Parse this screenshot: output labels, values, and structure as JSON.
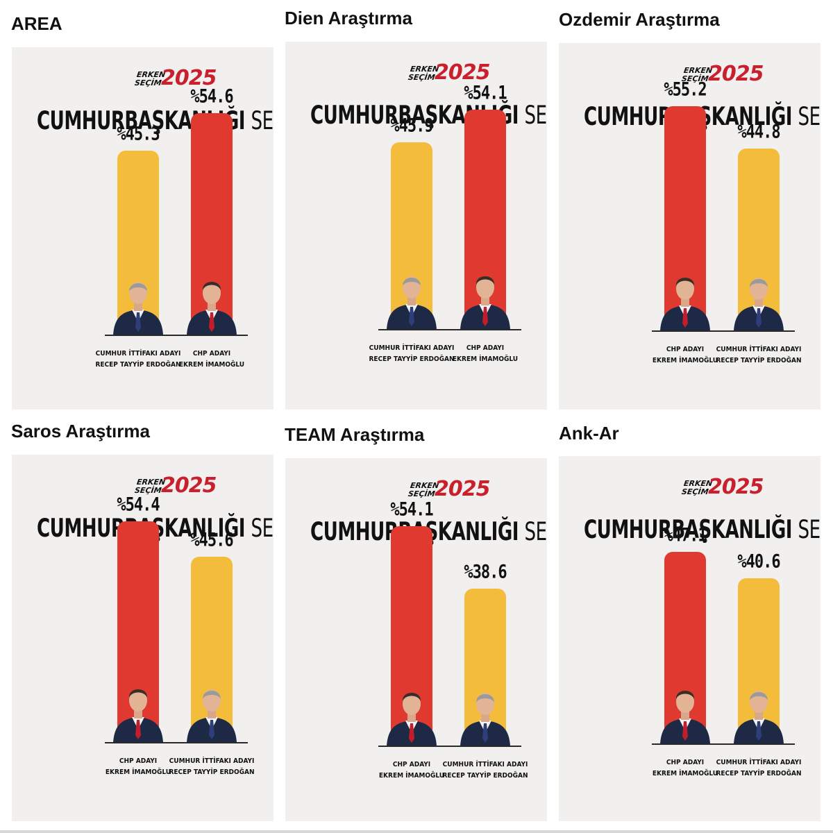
{
  "brand": {
    "top": "ERKEN",
    "bottom": "SEÇİM",
    "year": "2025"
  },
  "headline": {
    "bold": "CUMHURBAŞKANLIĞI",
    "rest": "SEÇİM AN"
  },
  "colors": {
    "red": "#e03a30",
    "yellow": "#f3bd3b",
    "suit": "#1e2a45",
    "tie_red": "#c21d2a",
    "tie_blue": "#2d3e7a"
  },
  "candidates": {
    "imamoglu": {
      "line1": "CHP ADAYI",
      "line2": "EKREM İMAMOĞLU",
      "color": "#e03a30",
      "tie": "#c21d2a",
      "icon": "person-imamoglu-icon"
    },
    "erdogan": {
      "line1": "CUMHUR İTTİFAKI ADAYI",
      "line2": "RECEP TAYYİP ERDOĞAN",
      "color": "#f3bd3b",
      "tie": "#2d3e7a",
      "icon": "person-erdogan-icon"
    }
  },
  "chart_data": [
    {
      "type": "bar",
      "title": "AREA",
      "categories": [
        "Recep Tayyip Erdoğan",
        "Ekrem İmamoğlu"
      ],
      "candidate_order": [
        "erdogan",
        "imamoglu"
      ],
      "values": [
        45.3,
        54.6
      ],
      "labels": [
        "%45.3",
        "%54.6"
      ],
      "ylim": [
        0,
        60
      ],
      "grid": false
    },
    {
      "type": "bar",
      "title": "Dien Araştırma",
      "categories": [
        "Recep Tayyip Erdoğan",
        "Ekrem İmamoğlu"
      ],
      "candidate_order": [
        "erdogan",
        "imamoglu"
      ],
      "values": [
        45.9,
        54.1
      ],
      "labels": [
        "%45.9",
        "%54.1"
      ],
      "ylim": [
        0,
        60
      ],
      "grid": false
    },
    {
      "type": "bar",
      "title": "Ozdemir Araştırma",
      "categories": [
        "Ekrem İmamoğlu",
        "Recep Tayyip Erdoğan"
      ],
      "candidate_order": [
        "imamoglu",
        "erdogan"
      ],
      "values": [
        55.2,
        44.8
      ],
      "labels": [
        "%55.2",
        "%44.8"
      ],
      "ylim": [
        0,
        60
      ],
      "grid": false
    },
    {
      "type": "bar",
      "title": "Saros Araştırma",
      "categories": [
        "Ekrem İmamoğlu",
        "Recep Tayyip Erdoğan"
      ],
      "candidate_order": [
        "imamoglu",
        "erdogan"
      ],
      "values": [
        54.4,
        45.6
      ],
      "labels": [
        "%54.4",
        "%45.6"
      ],
      "ylim": [
        0,
        60
      ],
      "grid": false
    },
    {
      "type": "bar",
      "title": "TEAM Araştırma",
      "categories": [
        "Ekrem İmamoğlu",
        "Recep Tayyip Erdoğan"
      ],
      "candidate_order": [
        "imamoglu",
        "erdogan"
      ],
      "values": [
        54.1,
        38.6
      ],
      "labels": [
        "%54.1",
        "%38.6"
      ],
      "ylim": [
        0,
        60
      ],
      "grid": false
    },
    {
      "type": "bar",
      "title": "Ank-Ar",
      "categories": [
        "Ekrem İmamoğlu",
        "Recep Tayyip Erdoğan"
      ],
      "candidate_order": [
        "imamoglu",
        "erdogan"
      ],
      "values": [
        47.1,
        40.6
      ],
      "labels": [
        "%47.1",
        "%40.6"
      ],
      "ylim": [
        0,
        60
      ],
      "grid": false
    }
  ]
}
